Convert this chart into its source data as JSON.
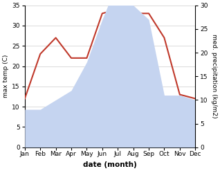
{
  "months": [
    "Jan",
    "Feb",
    "Mar",
    "Apr",
    "May",
    "Jun",
    "Jul",
    "Aug",
    "Sep",
    "Oct",
    "Nov",
    "Dec"
  ],
  "max_temp": [
    12,
    23,
    27,
    22,
    22,
    33,
    34,
    33,
    33,
    27,
    13,
    12
  ],
  "precipitation": [
    8,
    8,
    10,
    12,
    18,
    27,
    35,
    30,
    27,
    11,
    11,
    10
  ],
  "temp_color": "#c0392b",
  "precip_color": "#c5d4f0",
  "title": "",
  "xlabel": "date (month)",
  "ylabel_left": "max temp (C)",
  "ylabel_right": "med. precipitation (kg/m2)",
  "ylim_left": [
    0,
    35
  ],
  "ylim_right": [
    0,
    30
  ],
  "yticks_left": [
    0,
    5,
    10,
    15,
    20,
    25,
    30,
    35
  ],
  "yticks_right": [
    0,
    5,
    10,
    15,
    20,
    25,
    30
  ],
  "bg_color": "#ffffff",
  "grid_color": "#cccccc"
}
